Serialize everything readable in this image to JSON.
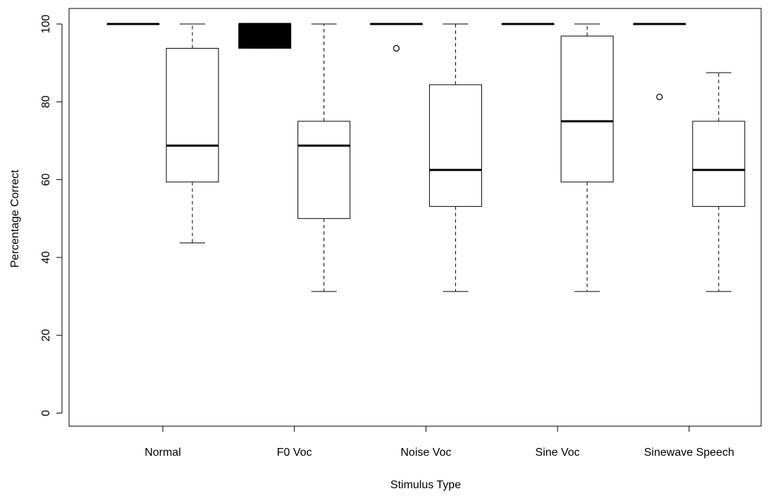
{
  "chart_data": {
    "type": "boxplot",
    "xlabel": "Stimulus Type",
    "ylabel": "Percentage Correct",
    "ylim": [
      0,
      100
    ],
    "yticks": [
      0,
      20,
      40,
      60,
      80,
      100
    ],
    "grid": false,
    "categories": [
      "Normal",
      "F0 Voc",
      "Noise Voc",
      "Sine Voc",
      "Sinewave Speech"
    ],
    "groups": [
      {
        "category": "Normal",
        "boxes": [
          {
            "min": 100,
            "q1": 100,
            "median": 100,
            "q3": 100,
            "max": 100,
            "outliers": [],
            "fill": "#ffffff"
          },
          {
            "min": 43.75,
            "q1": 59.4,
            "median": 68.75,
            "q3": 93.75,
            "max": 100,
            "outliers": [],
            "fill": "#ffffff"
          }
        ]
      },
      {
        "category": "F0 Voc",
        "boxes": [
          {
            "min": 93.75,
            "q1": 93.75,
            "median": 100,
            "q3": 100,
            "max": 100,
            "outliers": [],
            "fill": "#000000"
          },
          {
            "min": 31.25,
            "q1": 50,
            "median": 68.75,
            "q3": 75,
            "max": 100,
            "outliers": [],
            "fill": "#ffffff"
          }
        ]
      },
      {
        "category": "Noise Voc",
        "boxes": [
          {
            "min": 100,
            "q1": 100,
            "median": 100,
            "q3": 100,
            "max": 100,
            "outliers": [
              93.75
            ],
            "fill": "#ffffff"
          },
          {
            "min": 31.25,
            "q1": 53.1,
            "median": 62.5,
            "q3": 84.4,
            "max": 100,
            "outliers": [],
            "fill": "#ffffff"
          }
        ]
      },
      {
        "category": "Sine Voc",
        "boxes": [
          {
            "min": 100,
            "q1": 100,
            "median": 100,
            "q3": 100,
            "max": 100,
            "outliers": [],
            "fill": "#ffffff"
          },
          {
            "min": 31.25,
            "q1": 59.4,
            "median": 75,
            "q3": 96.9,
            "max": 100,
            "outliers": [],
            "fill": "#ffffff"
          }
        ]
      },
      {
        "category": "Sinewave Speech",
        "boxes": [
          {
            "min": 100,
            "q1": 100,
            "median": 100,
            "q3": 100,
            "max": 100,
            "outliers": [
              81.25
            ],
            "fill": "#ffffff"
          },
          {
            "min": 31.25,
            "q1": 53.1,
            "median": 62.5,
            "q3": 75,
            "max": 87.5,
            "outliers": [],
            "fill": "#ffffff"
          }
        ]
      }
    ]
  }
}
